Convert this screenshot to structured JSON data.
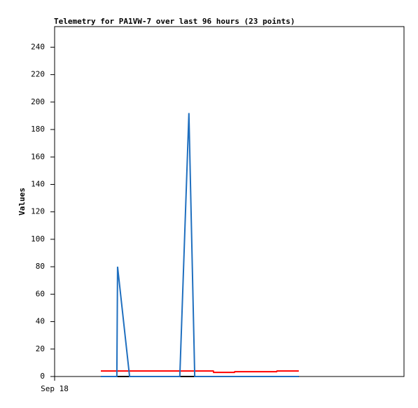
{
  "chart_data": {
    "type": "line",
    "title": "Telemetry for PA1VW-7 over last 96 hours (23 points)",
    "y_label": "Values",
    "xlim": [
      0,
      96
    ],
    "xticks": [
      {
        "value": 0,
        "label": "Sep 18"
      }
    ],
    "ylim": [
      0,
      255
    ],
    "yticks": [
      0,
      20,
      40,
      60,
      80,
      100,
      120,
      140,
      160,
      180,
      200,
      220,
      240
    ],
    "series": [
      {
        "color": "#000000",
        "x": [
          12.7,
          67.1
        ],
        "values": [
          0,
          0
        ]
      },
      {
        "color": "#ff0000",
        "x": [
          12.7,
          43.6,
          43.7,
          49.4,
          49.5,
          61,
          61.1,
          67.1
        ],
        "values": [
          4,
          4,
          3,
          3,
          3.5,
          3.5,
          4,
          4
        ]
      },
      {
        "color": "#1f6fbf",
        "x": [
          12.7,
          17.1,
          17.3,
          20.6,
          34.4,
          36.9,
          38.5,
          67.1
        ],
        "values": [
          0,
          0,
          80,
          0,
          0,
          192,
          0,
          0
        ]
      }
    ]
  }
}
